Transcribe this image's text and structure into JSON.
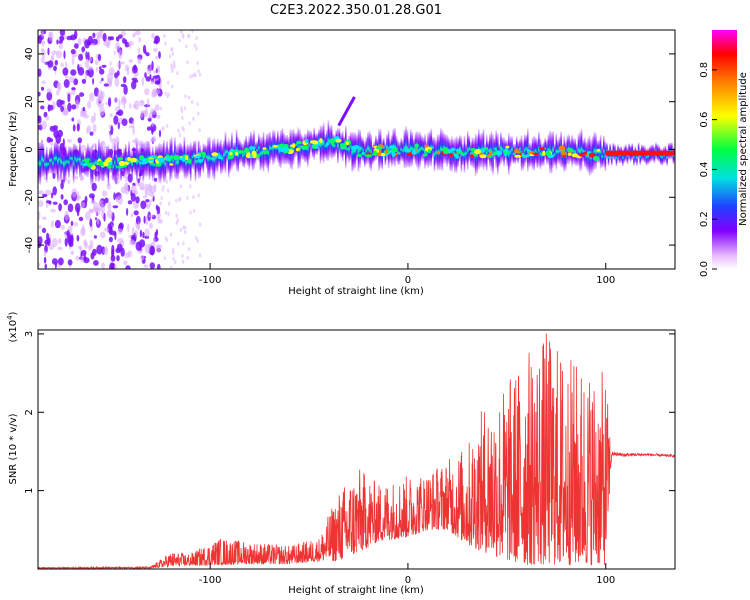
{
  "title": "C2E3.2022.350.01.28.G01",
  "chart_data": [
    {
      "type": "heatmap",
      "xlabel": "Height of straight line (km)",
      "ylabel": "Frequency (Hz)",
      "xlim": [
        -187,
        135
      ],
      "ylim": [
        -50,
        50
      ],
      "xticks": [
        -100,
        0,
        100
      ],
      "yticks": [
        -40,
        -20,
        0,
        20,
        40
      ],
      "grid": false,
      "colorbar": {
        "label": "Normalized spectral amplitude",
        "range": [
          0,
          0.96
        ],
        "ticks": [
          "0.0",
          "0.2",
          "0.4",
          "0.6",
          "0.8"
        ],
        "colors": [
          "#ffffff",
          "#e6b3ff",
          "#8000ff",
          "#2040ff",
          "#00e0e0",
          "#00ff40",
          "#ffff00",
          "#ff8000",
          "#ff0000",
          "#ff00ff"
        ]
      },
      "ridge": {
        "x": [
          -170,
          -150,
          -130,
          -110,
          -90,
          -70,
          -50,
          -35,
          -25,
          0,
          25,
          50,
          75,
          100,
          135
        ],
        "freq": [
          -5,
          -6,
          -5,
          -4,
          -2,
          0,
          2,
          3,
          -1,
          0,
          -1,
          -1,
          -1,
          -2,
          -2
        ]
      }
    },
    {
      "type": "line",
      "xlabel": "Height of straight line (km)",
      "ylabel": "SNR (10 * v/v)",
      "yscale_label": "(x10",
      "yscale_exp": "4",
      "xlim": [
        -187,
        135
      ],
      "ylim": [
        0,
        3.05
      ],
      "xticks": [
        -100,
        0,
        100
      ],
      "yticks": [
        1,
        2,
        3
      ],
      "series": [
        {
          "color": "#ee3333",
          "envelope": {
            "x": [
              -187,
              -130,
              -120,
              -110,
              -95,
              -80,
              -60,
              -45,
              -35,
              -25,
              -15,
              0,
              10,
              20,
              30,
              40,
              50,
              60,
              70,
              80,
              90,
              100,
              103,
              110,
              120,
              135
            ],
            "lower": [
              0.01,
              0.01,
              0.03,
              0.04,
              0.05,
              0.06,
              0.06,
              0.1,
              0.1,
              0.2,
              0.35,
              0.4,
              0.5,
              0.5,
              0.3,
              0.2,
              0.1,
              0.05,
              0.05,
              0.05,
              0.05,
              0.05,
              1.45,
              1.44,
              1.45,
              1.43
            ],
            "upper": [
              0.02,
              0.03,
              0.22,
              0.2,
              0.4,
              0.35,
              0.3,
              0.4,
              1.0,
              1.3,
              1.1,
              1.2,
              1.25,
              1.4,
              1.6,
              2.2,
              2.4,
              2.8,
              3.05,
              2.75,
              2.6,
              2.5,
              1.5,
              1.48,
              1.48,
              1.46
            ]
          }
        }
      ]
    }
  ]
}
